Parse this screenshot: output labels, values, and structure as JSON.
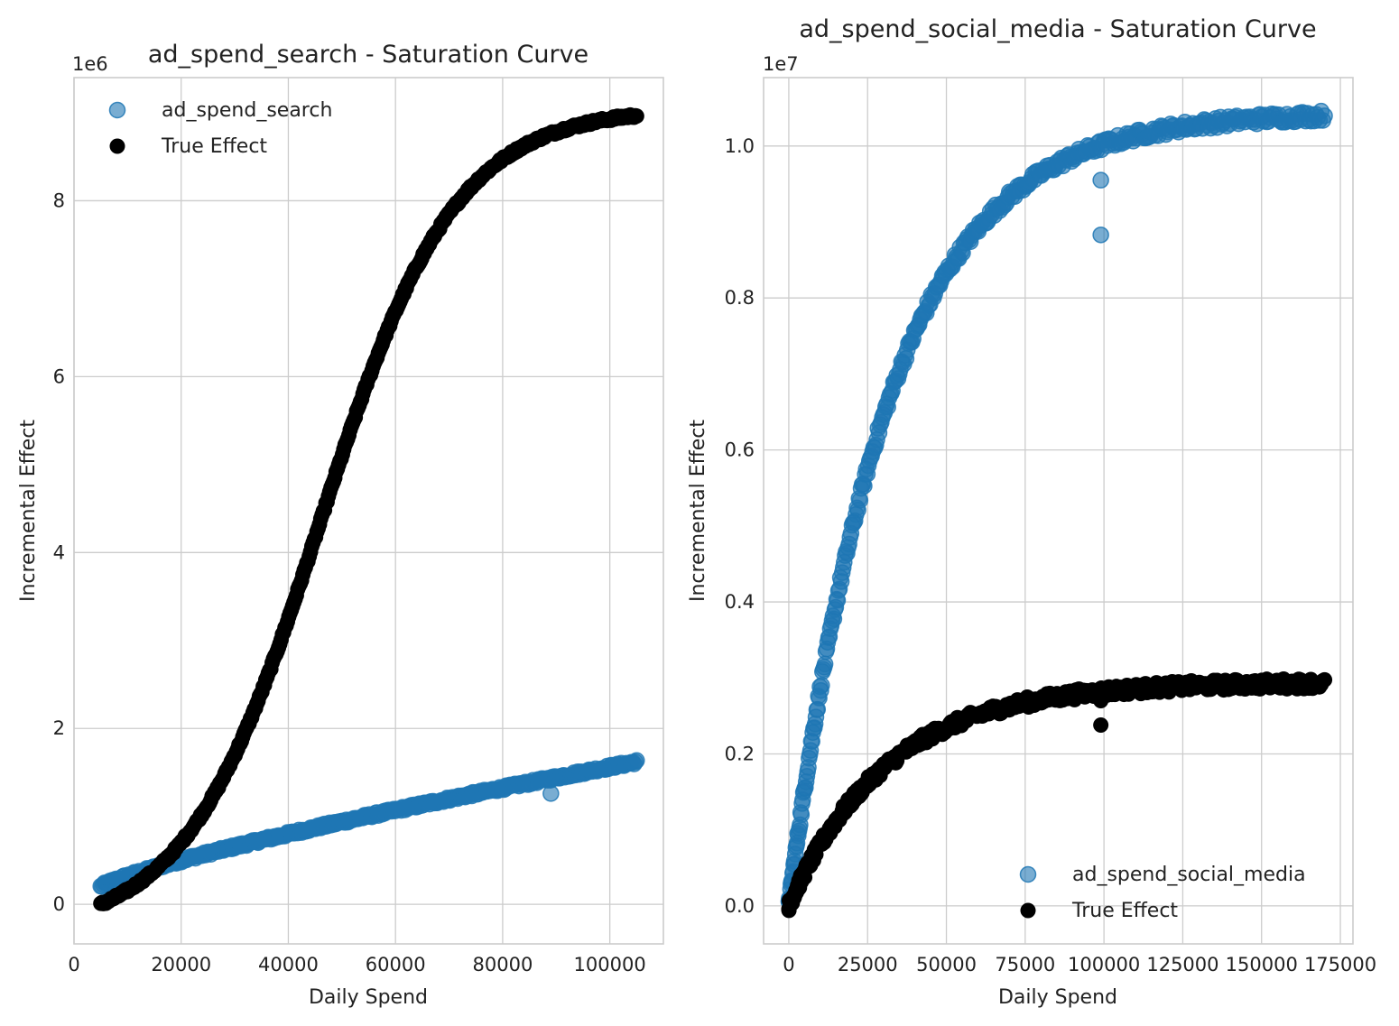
{
  "chart_data": [
    {
      "type": "scatter",
      "title": "ad_spend_search - Saturation Curve",
      "xlabel": "Daily Spend",
      "ylabel": "Incremental Effect",
      "y_offset_label": "1e6",
      "xlim": [
        0,
        110000
      ],
      "ylim": [
        -0.45,
        9.4
      ],
      "y_scale_factor": 1000000,
      "xticks": [
        0,
        20000,
        40000,
        60000,
        80000,
        100000
      ],
      "xtick_labels": [
        "0",
        "20000",
        "40000",
        "60000",
        "80000",
        "100000"
      ],
      "yticks": [
        0,
        2,
        4,
        6,
        8
      ],
      "ytick_labels": [
        "0",
        "2",
        "4",
        "6",
        "8"
      ],
      "grid": true,
      "legend_position": "upper-left",
      "series": [
        {
          "name": "ad_spend_search",
          "color": "#1f77b4",
          "alpha": 0.6,
          "curve": "concave",
          "x_range": [
            5000,
            105000
          ],
          "y_range": [
            0.2,
            1.62
          ],
          "outliers": [
            [
              89000,
              1.26
            ]
          ]
        },
        {
          "name": "True Effect",
          "color": "#000000",
          "alpha": 1.0,
          "curve": "sigmoid",
          "x_range": [
            5000,
            105000
          ],
          "y_range": [
            0.0,
            8.97
          ],
          "midpoint": 46000,
          "steepness": 8e-05,
          "outliers": []
        }
      ]
    },
    {
      "type": "scatter",
      "title": "ad_spend_social_media - Saturation Curve",
      "xlabel": "Daily Spend",
      "ylabel": "Incremental Effect",
      "y_offset_label": "1e7",
      "xlim": [
        -8000,
        179000
      ],
      "ylim": [
        -0.05,
        1.09
      ],
      "y_scale_factor": 10000000,
      "xticks": [
        0,
        25000,
        50000,
        75000,
        100000,
        125000,
        150000,
        175000
      ],
      "xtick_labels": [
        "0",
        "25000",
        "50000",
        "75000",
        "100000",
        "125000",
        "150000",
        "175000"
      ],
      "yticks": [
        0.0,
        0.2,
        0.4,
        0.6,
        0.8,
        1.0
      ],
      "ytick_labels": [
        "0.0",
        "0.2",
        "0.4",
        "0.6",
        "0.8",
        "1.0"
      ],
      "grid": true,
      "legend_position": "lower-right",
      "series": [
        {
          "name": "ad_spend_social_media",
          "color": "#1f77b4",
          "alpha": 0.6,
          "curve": "saturating",
          "x_range": [
            0,
            170000
          ],
          "y_range": [
            0.0,
            1.04
          ],
          "outliers": [
            [
              99000,
              0.955
            ],
            [
              99000,
              0.883
            ]
          ]
        },
        {
          "name": "True Effect",
          "color": "#000000",
          "alpha": 1.0,
          "curve": "saturating",
          "x_range": [
            0,
            170000
          ],
          "y_range": [
            0.0,
            0.293
          ],
          "outliers": [
            [
              99000,
              0.27
            ],
            [
              99000,
              0.238
            ]
          ]
        }
      ]
    }
  ]
}
